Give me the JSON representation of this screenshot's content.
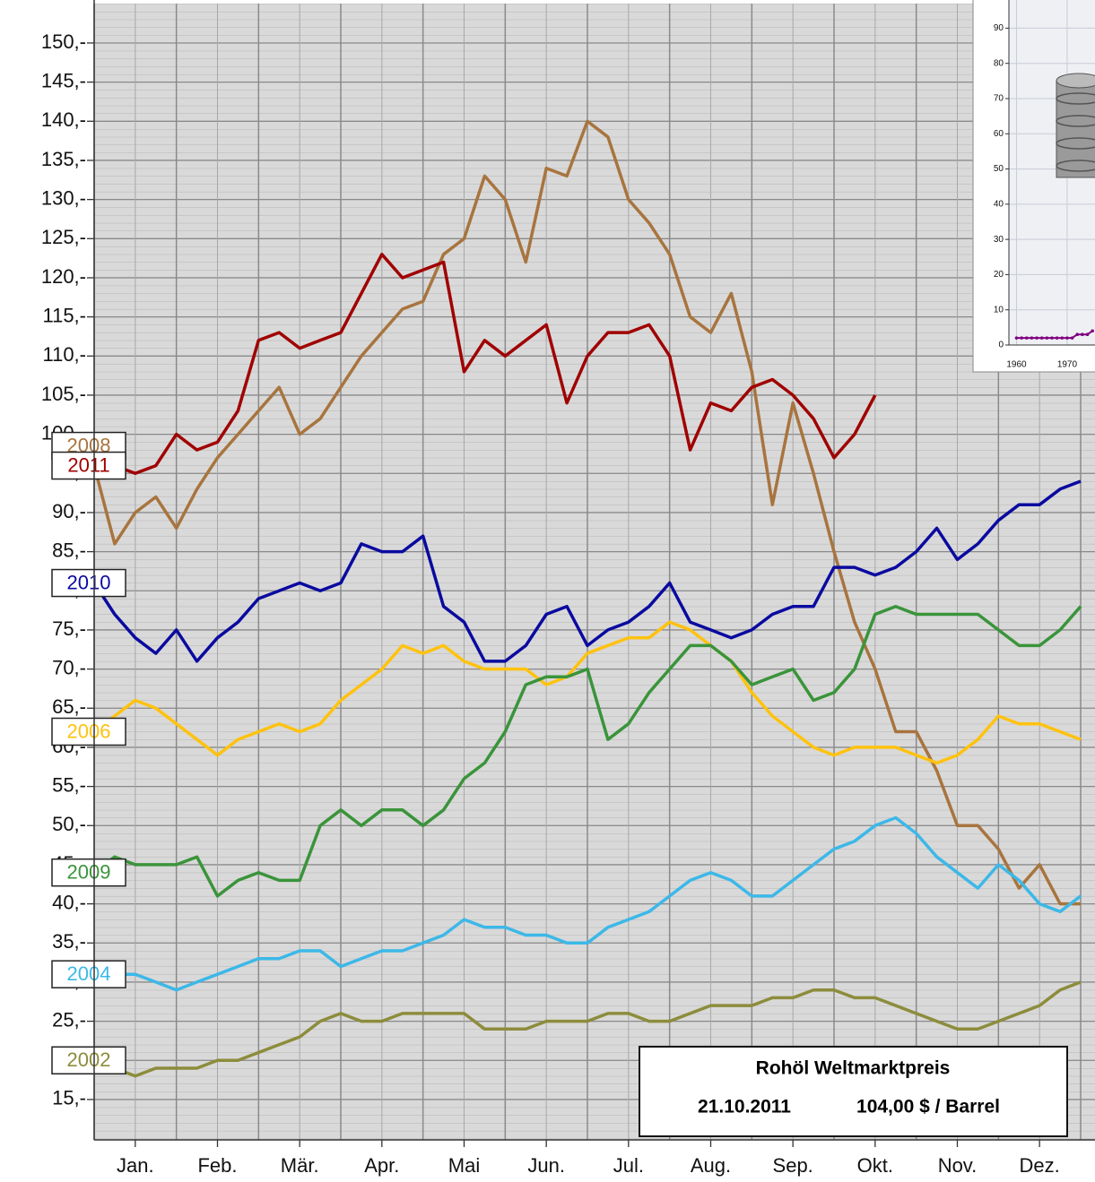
{
  "chart_data": [
    {
      "type": "line",
      "x": [
        0,
        0.25,
        0.5,
        0.75,
        1,
        1.25,
        1.5,
        1.75,
        2,
        2.25,
        2.5,
        2.75,
        3,
        3.25,
        3.5,
        3.75,
        4,
        4.25,
        4.5,
        4.75,
        5,
        5.25,
        5.5,
        5.75,
        6,
        6.25,
        6.5,
        6.75,
        7,
        7.25,
        7.5,
        7.75,
        8,
        8.25,
        8.5,
        8.75,
        9,
        9.25,
        9.5,
        9.75,
        10,
        10.25,
        10.5,
        10.75,
        11,
        11.25,
        11.5,
        11.75,
        12
      ],
      "xlim": [
        0,
        12
      ],
      "xticks": [
        {
          "value": 0.5,
          "label": "Jan."
        },
        {
          "value": 1.5,
          "label": "Feb."
        },
        {
          "value": 2.5,
          "label": "Mär."
        },
        {
          "value": 3.5,
          "label": "Apr."
        },
        {
          "value": 4.5,
          "label": "Mai"
        },
        {
          "value": 5.5,
          "label": "Jun."
        },
        {
          "value": 6.5,
          "label": "Jul."
        },
        {
          "value": 7.5,
          "label": "Aug."
        },
        {
          "value": 8.5,
          "label": "Sep."
        },
        {
          "value": 9.5,
          "label": "Okt."
        },
        {
          "value": 10.5,
          "label": "Nov."
        },
        {
          "value": 11.5,
          "label": "Dez."
        }
      ],
      "ylim": [
        10,
        155
      ],
      "yticks": [
        {
          "value": 15,
          "label": "15,-"
        },
        {
          "value": 20,
          "label": "20,-"
        },
        {
          "value": 25,
          "label": "25,-"
        },
        {
          "value": 30,
          "label": "30,-"
        },
        {
          "value": 35,
          "label": "35,-"
        },
        {
          "value": 40,
          "label": "40,-"
        },
        {
          "value": 45,
          "label": "45,-"
        },
        {
          "value": 50,
          "label": "50,-"
        },
        {
          "value": 55,
          "label": "55,-"
        },
        {
          "value": 60,
          "label": "60,-"
        },
        {
          "value": 65,
          "label": "65,-"
        },
        {
          "value": 70,
          "label": "70,-"
        },
        {
          "value": 75,
          "label": "75,-"
        },
        {
          "value": 80,
          "label": "80,-"
        },
        {
          "value": 85,
          "label": "85,-"
        },
        {
          "value": 90,
          "label": "90,-"
        },
        {
          "value": 95,
          "label": "95,-"
        },
        {
          "value": 100,
          "label": "100,-"
        },
        {
          "value": 105,
          "label": "105,-"
        },
        {
          "value": 110,
          "label": "110,-"
        },
        {
          "value": 115,
          "label": "115,-"
        },
        {
          "value": 120,
          "label": "120,-"
        },
        {
          "value": 125,
          "label": "125,-"
        },
        {
          "value": 130,
          "label": "130,-"
        },
        {
          "value": 135,
          "label": "135,-"
        },
        {
          "value": 140,
          "label": "140,-"
        },
        {
          "value": 145,
          "label": "145,-"
        },
        {
          "value": 150,
          "label": "150,-"
        }
      ],
      "grid": true,
      "series": [
        {
          "name": "2008",
          "color": "#a8743e",
          "values": [
            96,
            86,
            90,
            92,
            88,
            93,
            97,
            100,
            103,
            106,
            100,
            102,
            106,
            110,
            113,
            116,
            117,
            123,
            125,
            133,
            130,
            122,
            134,
            133,
            140,
            138,
            130,
            127,
            123,
            115,
            113,
            118,
            108,
            91,
            104,
            95,
            85,
            76,
            70,
            62,
            62,
            57,
            50,
            50,
            47,
            42,
            45,
            40,
            40
          ]
        },
        {
          "name": "2011",
          "color": "#a00000",
          "values": [
            96,
            96,
            95,
            96,
            100,
            98,
            99,
            103,
            112,
            113,
            111,
            112,
            113,
            118,
            123,
            120,
            121,
            122,
            108,
            112,
            110,
            112,
            114,
            104,
            110,
            113,
            113,
            114,
            110,
            98,
            104,
            103,
            106,
            107,
            105,
            102,
            97,
            100,
            105,
            null,
            null,
            null,
            null,
            null,
            null,
            null,
            null,
            null,
            null
          ]
        },
        {
          "name": "2010",
          "color": "#0a0aa0",
          "values": [
            81,
            77,
            74,
            72,
            75,
            71,
            74,
            76,
            79,
            80,
            81,
            80,
            81,
            86,
            85,
            85,
            87,
            78,
            76,
            71,
            71,
            73,
            77,
            78,
            73,
            75,
            76,
            78,
            81,
            76,
            75,
            74,
            75,
            77,
            78,
            78,
            83,
            83,
            82,
            83,
            85,
            88,
            84,
            86,
            89,
            91,
            91,
            93,
            94
          ]
        },
        {
          "name": "2006",
          "color": "#ffc20e",
          "values": [
            62,
            64,
            66,
            65,
            63,
            61,
            59,
            61,
            62,
            63,
            62,
            63,
            66,
            68,
            70,
            73,
            72,
            73,
            71,
            70,
            70,
            70,
            68,
            69,
            72,
            73,
            74,
            74,
            76,
            75,
            73,
            71,
            67,
            64,
            62,
            60,
            59,
            60,
            60,
            60,
            59,
            58,
            59,
            61,
            64,
            63,
            63,
            62,
            61
          ]
        },
        {
          "name": "2009",
          "color": "#3a943a",
          "values": [
            44,
            46,
            45,
            45,
            45,
            46,
            41,
            43,
            44,
            43,
            43,
            50,
            52,
            50,
            52,
            52,
            50,
            52,
            56,
            58,
            62,
            68,
            69,
            69,
            70,
            61,
            63,
            67,
            70,
            73,
            73,
            71,
            68,
            69,
            70,
            66,
            67,
            70,
            77,
            78,
            77,
            77,
            77,
            77,
            75,
            73,
            73,
            75,
            78
          ]
        },
        {
          "name": "2004",
          "color": "#3cb8e8",
          "values": [
            31,
            31,
            31,
            30,
            29,
            30,
            31,
            32,
            33,
            33,
            34,
            34,
            32,
            33,
            34,
            34,
            35,
            36,
            38,
            37,
            37,
            36,
            36,
            35,
            35,
            37,
            38,
            39,
            41,
            43,
            44,
            43,
            41,
            41,
            43,
            45,
            47,
            48,
            50,
            51,
            49,
            46,
            44,
            42,
            45,
            43,
            40,
            39,
            41
          ]
        },
        {
          "name": "2002",
          "color": "#8c8c3c",
          "values": [
            20,
            19,
            18,
            19,
            19,
            19,
            20,
            20,
            21,
            22,
            23,
            25,
            26,
            25,
            25,
            26,
            26,
            26,
            26,
            24,
            24,
            24,
            25,
            25,
            25,
            26,
            26,
            25,
            25,
            26,
            27,
            27,
            27,
            28,
            28,
            29,
            29,
            28,
            28,
            27,
            26,
            25,
            24,
            24,
            25,
            26,
            27,
            29,
            30
          ]
        }
      ],
      "annotations": [
        "Rohöl Weltmarktpreis",
        "21.10.2011",
        "104,00 $ / Barrel"
      ]
    },
    {
      "type": "line",
      "x": [
        1960,
        1961,
        1962,
        1963,
        1964,
        1965,
        1966,
        1967,
        1968,
        1969,
        1970,
        1971,
        1972,
        1973,
        1974,
        1975
      ],
      "xlim": [
        1958.5,
        1975.5
      ],
      "xticks": [
        1960,
        1970
      ],
      "ylim": [
        0,
        98
      ],
      "yticks": [
        0,
        10,
        20,
        30,
        40,
        50,
        60,
        70,
        80,
        90
      ],
      "grid": true,
      "series": [
        {
          "name": null,
          "color": "#800080",
          "values": [
            2,
            2,
            2,
            2,
            2,
            2,
            2,
            2,
            2,
            2,
            2,
            2,
            3,
            3,
            3,
            4
          ]
        }
      ]
    }
  ]
}
